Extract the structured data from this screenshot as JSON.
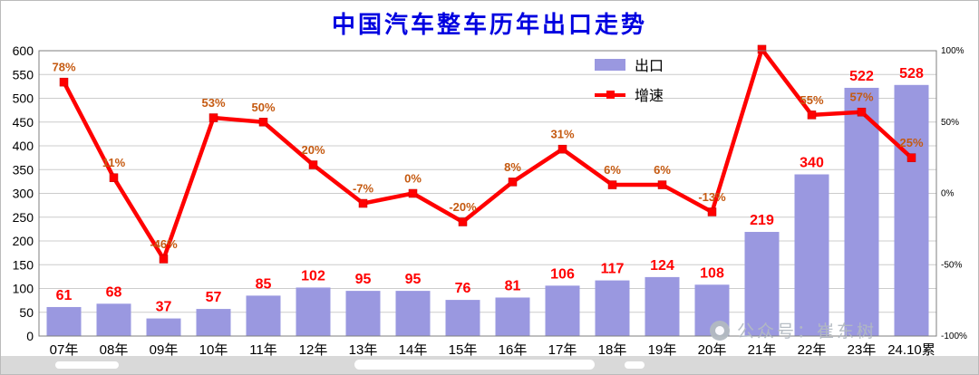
{
  "title": "中国汽车整车历年出口走势",
  "legend": {
    "export_label": "出口",
    "growth_label": "增速"
  },
  "watermark": {
    "text": "公众号：崔东树"
  },
  "colors": {
    "title": "#0000E0",
    "bar": "#9A98E0",
    "bar_label": "#FF0000",
    "line": "#FF0000",
    "marker": "#FF0000",
    "line_label": "#C55A11",
    "grid": "#CCCCCC",
    "axis_text": "#000000",
    "plot_border": "#7F7F7F"
  },
  "chart_data": {
    "type": "bar",
    "categories": [
      "07年",
      "08年",
      "09年",
      "10年",
      "11年",
      "12年",
      "13年",
      "14年",
      "15年",
      "16年",
      "17年",
      "18年",
      "19年",
      "20年",
      "21年",
      "22年",
      "23年",
      "24.10累"
    ],
    "series": [
      {
        "name": "出口",
        "type": "bar",
        "values": [
          61,
          68,
          37,
          57,
          85,
          102,
          95,
          95,
          76,
          81,
          106,
          117,
          124,
          108,
          219,
          340,
          522,
          528
        ]
      },
      {
        "name": "增速",
        "type": "line",
        "unit": "%",
        "values": [
          78,
          11,
          -46,
          53,
          50,
          20,
          -7,
          0,
          -20,
          8,
          31,
          6,
          6,
          -13,
          101,
          55,
          57,
          25
        ],
        "labels": [
          "78%",
          "11%",
          "-46%",
          "53%",
          "50%",
          "20%",
          "-7%",
          "0%",
          "-20%",
          "8%",
          "31%",
          "6%",
          "6%",
          "-13%",
          "",
          "55%",
          "57%",
          "25%"
        ]
      }
    ],
    "left_axis": {
      "min": 0,
      "max": 600,
      "step": 50
    },
    "right_axis": {
      "ticks": [
        100,
        50,
        0,
        -50,
        -100
      ],
      "labels": [
        "100%",
        "50%",
        "0%",
        "-50%",
        "-100%"
      ]
    },
    "grid": true,
    "legend_position": "top-center"
  }
}
